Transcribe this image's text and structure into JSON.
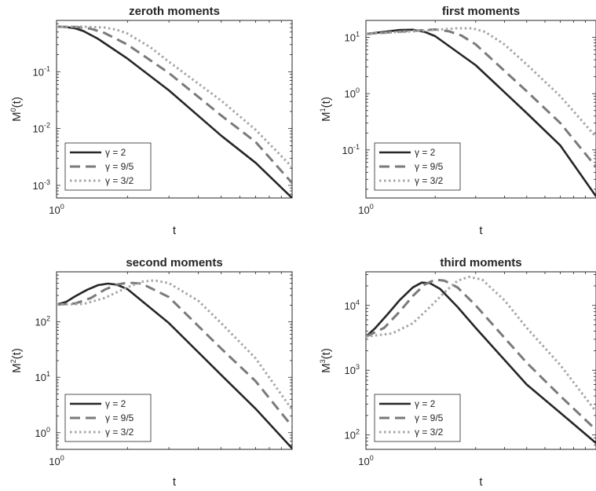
{
  "chart_data": [
    {
      "type": "line",
      "title": "zeroth moments",
      "xlabel": "t",
      "ylabel": {
        "base": "M",
        "sup": "0",
        "suffix": "(t)"
      },
      "x_scale": "log",
      "y_scale": "log",
      "xlim": [
        1,
        10
      ],
      "ylim": [
        0.0006,
        0.8
      ],
      "x_ticks": [
        {
          "base": "10",
          "exp": "0",
          "value": 1
        }
      ],
      "y_ticks": [
        {
          "base": "10",
          "exp": "-1",
          "value": 0.1
        },
        {
          "base": "10",
          "exp": "-2",
          "value": 0.01
        },
        {
          "base": "10",
          "exp": "-3",
          "value": 0.001
        }
      ],
      "legend_position": "bottom-left",
      "series": [
        {
          "name": "γ = 2",
          "style": "solid",
          "color": "#262626",
          "x": [
            1,
            1.1,
            1.2,
            1.3,
            1.5,
            2,
            3,
            5,
            7,
            10
          ],
          "y": [
            0.62,
            0.61,
            0.58,
            0.52,
            0.38,
            0.17,
            0.047,
            0.0075,
            0.0025,
            0.0006
          ]
        },
        {
          "name": "γ = 9/5",
          "style": "dashed",
          "color": "#7a7a7a",
          "x": [
            1,
            1.2,
            1.4,
            1.6,
            2,
            3,
            5,
            7,
            10
          ],
          "y": [
            0.62,
            0.615,
            0.57,
            0.48,
            0.3,
            0.095,
            0.017,
            0.0058,
            0.0011
          ]
        },
        {
          "name": "γ = 3/2",
          "style": "dotted",
          "color": "#a6a6a6",
          "x": [
            1,
            1.3,
            1.6,
            1.8,
            2,
            2.5,
            3,
            5,
            7,
            10
          ],
          "y": [
            0.62,
            0.62,
            0.6,
            0.55,
            0.47,
            0.27,
            0.15,
            0.031,
            0.0095,
            0.0021
          ]
        }
      ]
    },
    {
      "type": "line",
      "title": "first moments",
      "xlabel": "t",
      "ylabel": {
        "base": "M",
        "sup": "1",
        "suffix": "(t)"
      },
      "x_scale": "log",
      "y_scale": "log",
      "xlim": [
        1,
        10
      ],
      "ylim": [
        0.014,
        20
      ],
      "x_ticks": [
        {
          "base": "10",
          "exp": "0",
          "value": 1
        }
      ],
      "y_ticks": [
        {
          "base": "10",
          "exp": "1",
          "value": 10
        },
        {
          "base": "10",
          "exp": "0",
          "value": 1
        },
        {
          "base": "10",
          "exp": "-1",
          "value": 0.1
        }
      ],
      "legend_position": "bottom-left",
      "series": [
        {
          "name": "γ = 2",
          "style": "solid",
          "color": "#262626",
          "x": [
            1,
            1.2,
            1.4,
            1.6,
            1.8,
            2,
            3,
            5,
            7,
            10
          ],
          "y": [
            11.5,
            12.5,
            13.5,
            13.7,
            12.5,
            10.5,
            3.2,
            0.45,
            0.12,
            0.015
          ]
        },
        {
          "name": "γ = 9/5",
          "style": "dashed",
          "color": "#7a7a7a",
          "x": [
            1,
            1.3,
            1.7,
            2,
            2.3,
            2.6,
            3,
            5,
            7,
            10
          ],
          "y": [
            11.5,
            12.4,
            13.3,
            13.8,
            12.8,
            10.8,
            7.5,
            1.1,
            0.3,
            0.05
          ]
        },
        {
          "name": "γ = 3/2",
          "style": "dotted",
          "color": "#a6a6a6",
          "x": [
            1,
            1.5,
            2,
            2.5,
            2.9,
            3.3,
            4,
            5,
            7,
            10
          ],
          "y": [
            11.5,
            12.6,
            13.6,
            14.5,
            14.5,
            12.5,
            7.5,
            3.3,
            0.9,
            0.17
          ]
        }
      ]
    },
    {
      "type": "line",
      "title": "second moments",
      "xlabel": "t",
      "ylabel": {
        "base": "M",
        "sup": "2",
        "suffix": "(t)"
      },
      "x_scale": "log",
      "y_scale": "log",
      "xlim": [
        1,
        10
      ],
      "ylim": [
        0.5,
        800
      ],
      "x_ticks": [
        {
          "base": "10",
          "exp": "0",
          "value": 1
        }
      ],
      "y_ticks": [
        {
          "base": "10",
          "exp": "2",
          "value": 100
        },
        {
          "base": "10",
          "exp": "1",
          "value": 10
        },
        {
          "base": "10",
          "exp": "0",
          "value": 1
        }
      ],
      "legend_position": "bottom-left",
      "series": [
        {
          "name": "γ = 2",
          "style": "solid",
          "color": "#262626",
          "x": [
            1,
            1.1,
            1.2,
            1.35,
            1.5,
            1.65,
            1.8,
            2,
            3,
            5,
            7,
            10
          ],
          "y": [
            205,
            230,
            290,
            380,
            460,
            490,
            470,
            390,
            95,
            11,
            2.7,
            0.52
          ]
        },
        {
          "name": "γ = 9/5",
          "style": "dashed",
          "color": "#7a7a7a",
          "x": [
            1,
            1.2,
            1.4,
            1.6,
            1.8,
            2,
            2.3,
            3,
            5,
            7,
            10
          ],
          "y": [
            205,
            215,
            270,
            380,
            470,
            510,
            490,
            280,
            33,
            8.5,
            1.3
          ]
        },
        {
          "name": "γ = 3/2",
          "style": "dotted",
          "color": "#a6a6a6",
          "x": [
            1,
            1.3,
            1.6,
            2,
            2.3,
            2.6,
            3,
            4,
            5,
            7,
            10
          ],
          "y": [
            205,
            210,
            270,
            420,
            530,
            560,
            500,
            240,
            95,
            22,
            2.6
          ]
        }
      ]
    },
    {
      "type": "line",
      "title": "third moments",
      "xlabel": "t",
      "ylabel": {
        "base": "M",
        "sup": "3",
        "suffix": "(t)"
      },
      "x_scale": "log",
      "y_scale": "log",
      "xlim": [
        1,
        10
      ],
      "ylim": [
        60,
        33000
      ],
      "x_ticks": [
        {
          "base": "10",
          "exp": "0",
          "value": 1
        }
      ],
      "y_ticks": [
        {
          "base": "10",
          "exp": "4",
          "value": 10000
        },
        {
          "base": "10",
          "exp": "3",
          "value": 1000
        },
        {
          "base": "10",
          "exp": "2",
          "value": 100
        }
      ],
      "legend_position": "bottom-left",
      "series": [
        {
          "name": "γ = 2",
          "style": "solid",
          "color": "#262626",
          "x": [
            1,
            1.1,
            1.25,
            1.4,
            1.6,
            1.75,
            1.9,
            2.1,
            2.5,
            3,
            5,
            7,
            10
          ],
          "y": [
            3300,
            4500,
            7500,
            12000,
            19000,
            22500,
            22000,
            18000,
            9500,
            4500,
            600,
            220,
            75
          ]
        },
        {
          "name": "γ = 9/5",
          "style": "dashed",
          "color": "#7a7a7a",
          "x": [
            1,
            1.2,
            1.4,
            1.6,
            1.8,
            2,
            2.2,
            2.5,
            3,
            5,
            7,
            10
          ],
          "y": [
            3300,
            4500,
            8000,
            14000,
            21000,
            25000,
            24000,
            19000,
            10000,
            1300,
            400,
            120
          ]
        },
        {
          "name": "γ = 3/2",
          "style": "dotted",
          "color": "#a6a6a6",
          "x": [
            1,
            1.3,
            1.6,
            1.9,
            2.2,
            2.5,
            2.8,
            3.2,
            4,
            5,
            7,
            10
          ],
          "y": [
            3300,
            3700,
            5300,
            9500,
            16000,
            24000,
            27500,
            25000,
            12000,
            4500,
            1200,
            230
          ]
        }
      ]
    }
  ]
}
